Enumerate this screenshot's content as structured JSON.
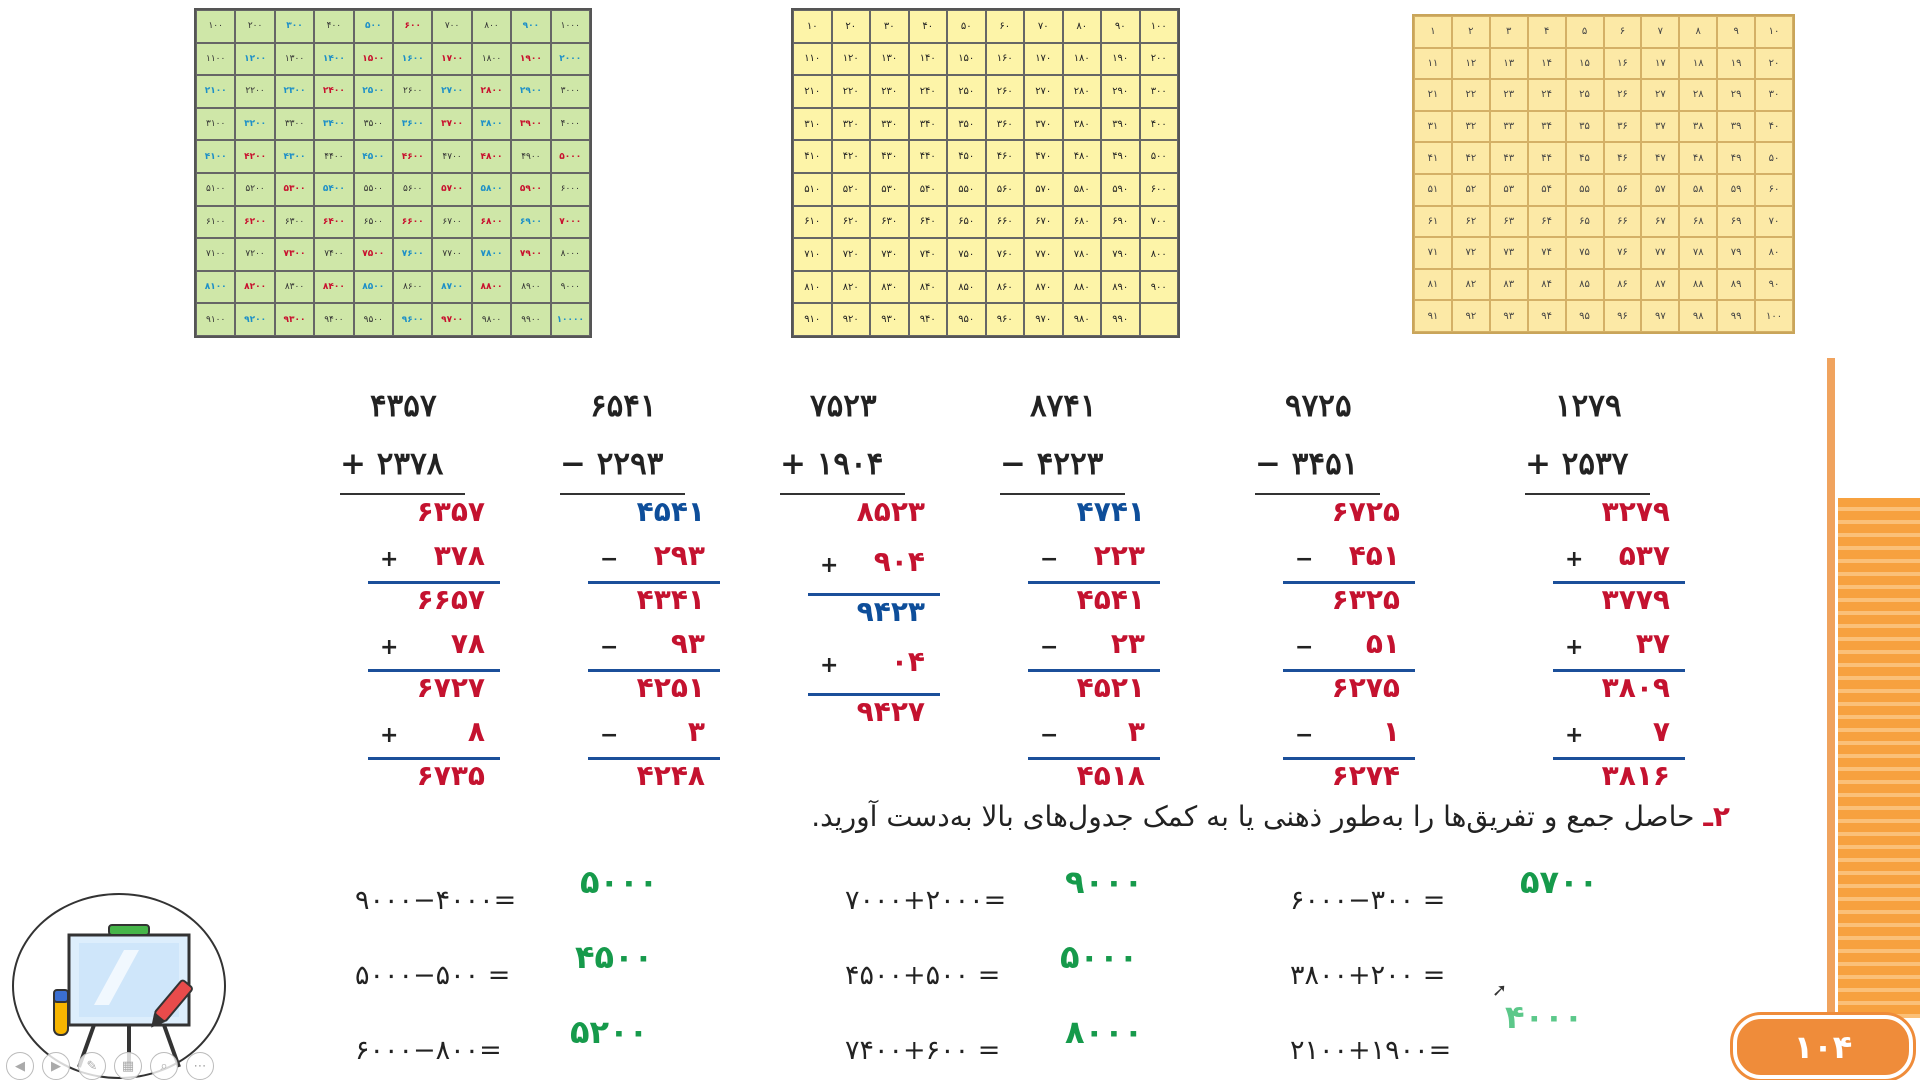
{
  "grids": {
    "thousands": [
      "۱۰۰",
      "۲۰۰",
      "۳۰۰",
      "۴۰۰",
      "۵۰۰",
      "۶۰۰",
      "۷۰۰",
      "۸۰۰",
      "۹۰۰",
      "۱۰۰۰",
      "۱۱۰۰",
      "۱۲۰۰",
      "۱۳۰۰",
      "۱۴۰۰",
      "۱۵۰۰",
      "۱۶۰۰",
      "۱۷۰۰",
      "۱۸۰۰",
      "۱۹۰۰",
      "۲۰۰۰",
      "۲۱۰۰",
      "۲۲۰۰",
      "۲۳۰۰",
      "۲۴۰۰",
      "۲۵۰۰",
      "۲۶۰۰",
      "۲۷۰۰",
      "۲۸۰۰",
      "۲۹۰۰",
      "۳۰۰۰",
      "۳۱۰۰",
      "۳۲۰۰",
      "۳۳۰۰",
      "۳۴۰۰",
      "۳۵۰۰",
      "۳۶۰۰",
      "۳۷۰۰",
      "۳۸۰۰",
      "۳۹۰۰",
      "۴۰۰۰",
      "۴۱۰۰",
      "۴۲۰۰",
      "۴۳۰۰",
      "۴۴۰۰",
      "۴۵۰۰",
      "۴۶۰۰",
      "۴۷۰۰",
      "۴۸۰۰",
      "۴۹۰۰",
      "۵۰۰۰",
      "۵۱۰۰",
      "۵۲۰۰",
      "۵۳۰۰",
      "۵۴۰۰",
      "۵۵۰۰",
      "۵۶۰۰",
      "۵۷۰۰",
      "۵۸۰۰",
      "۵۹۰۰",
      "۶۰۰۰",
      "۶۱۰۰",
      "۶۲۰۰",
      "۶۳۰۰",
      "۶۴۰۰",
      "۶۵۰۰",
      "۶۶۰۰",
      "۶۷۰۰",
      "۶۸۰۰",
      "۶۹۰۰",
      "۷۰۰۰",
      "۷۱۰۰",
      "۷۲۰۰",
      "۷۳۰۰",
      "۷۴۰۰",
      "۷۵۰۰",
      "۷۶۰۰",
      "۷۷۰۰",
      "۷۸۰۰",
      "۷۹۰۰",
      "۸۰۰۰",
      "۸۱۰۰",
      "۸۲۰۰",
      "۸۳۰۰",
      "۸۴۰۰",
      "۸۵۰۰",
      "۸۶۰۰",
      "۸۷۰۰",
      "۸۸۰۰",
      "۸۹۰۰",
      "۹۰۰۰",
      "۹۱۰۰",
      "۹۲۰۰",
      "۹۳۰۰",
      "۹۴۰۰",
      "۹۵۰۰",
      "۹۶۰۰",
      "۹۷۰۰",
      "۹۸۰۰",
      "۹۹۰۰",
      "۱۰۰۰۰"
    ],
    "thousands_colors": [
      "plain",
      "plain",
      "blue",
      "plain",
      "blue",
      "red",
      "plain",
      "plain",
      "blue",
      "plain",
      "plain",
      "blue",
      "plain",
      "blue",
      "red",
      "blue",
      "red",
      "plain",
      "red",
      "blue",
      "blue",
      "plain",
      "blue",
      "red",
      "blue",
      "plain",
      "blue",
      "red",
      "blue",
      "plain",
      "plain",
      "blue",
      "plain",
      "blue",
      "plain",
      "blue",
      "red",
      "blue",
      "red",
      "plain",
      "blue",
      "red",
      "blue",
      "plain",
      "blue",
      "red",
      "plain",
      "red",
      "plain",
      "red",
      "plain",
      "plain",
      "red",
      "blue",
      "plain",
      "plain",
      "red",
      "blue",
      "red",
      "plain",
      "plain",
      "red",
      "plain",
      "red",
      "plain",
      "red",
      "plain",
      "red",
      "blue",
      "red",
      "plain",
      "plain",
      "red",
      "plain",
      "red",
      "blue",
      "plain",
      "blue",
      "red",
      "plain",
      "blue",
      "red",
      "plain",
      "red",
      "blue",
      "plain",
      "blue",
      "red",
      "plain",
      "plain",
      "plain",
      "blue",
      "red",
      "plain",
      "plain",
      "blue",
      "red",
      "plain",
      "plain",
      "blue"
    ],
    "hundreds": [
      "۱۰",
      "۲۰",
      "۳۰",
      "۴۰",
      "۵۰",
      "۶۰",
      "۷۰",
      "۸۰",
      "۹۰",
      "۱۰۰",
      "۱۱۰",
      "۱۲۰",
      "۱۳۰",
      "۱۴۰",
      "۱۵۰",
      "۱۶۰",
      "۱۷۰",
      "۱۸۰",
      "۱۹۰",
      "۲۰۰",
      "۲۱۰",
      "۲۲۰",
      "۲۳۰",
      "۲۴۰",
      "۲۵۰",
      "۲۶۰",
      "۲۷۰",
      "۲۸۰",
      "۲۹۰",
      "۳۰۰",
      "۳۱۰",
      "۳۲۰",
      "۳۳۰",
      "۳۴۰",
      "۳۵۰",
      "۳۶۰",
      "۳۷۰",
      "۳۸۰",
      "۳۹۰",
      "۴۰۰",
      "۴۱۰",
      "۴۲۰",
      "۴۳۰",
      "۴۴۰",
      "۴۵۰",
      "۴۶۰",
      "۴۷۰",
      "۴۸۰",
      "۴۹۰",
      "۵۰۰",
      "۵۱۰",
      "۵۲۰",
      "۵۳۰",
      "۵۴۰",
      "۵۵۰",
      "۵۶۰",
      "۵۷۰",
      "۵۸۰",
      "۵۹۰",
      "۶۰۰",
      "۶۱۰",
      "۶۲۰",
      "۶۳۰",
      "۶۴۰",
      "۶۵۰",
      "۶۶۰",
      "۶۷۰",
      "۶۸۰",
      "۶۹۰",
      "۷۰۰",
      "۷۱۰",
      "۷۲۰",
      "۷۳۰",
      "۷۴۰",
      "۷۵۰",
      "۷۶۰",
      "۷۷۰",
      "۷۸۰",
      "۷۹۰",
      "۸۰۰",
      "۸۱۰",
      "۸۲۰",
      "۸۳۰",
      "۸۴۰",
      "۸۵۰",
      "۸۶۰",
      "۸۷۰",
      "۸۸۰",
      "۸۹۰",
      "۹۰۰",
      "۹۱۰",
      "۹۲۰",
      "۹۳۰",
      "۹۴۰",
      "۹۵۰",
      "۹۶۰",
      "۹۷۰",
      "۹۸۰",
      "۹۹۰",
      ""
    ],
    "ones": [
      "۱",
      "۲",
      "۳",
      "۴",
      "۵",
      "۶",
      "۷",
      "۸",
      "۹",
      "۱۰",
      "۱۱",
      "۱۲",
      "۱۳",
      "۱۴",
      "۱۵",
      "۱۶",
      "۱۷",
      "۱۸",
      "۱۹",
      "۲۰",
      "۲۱",
      "۲۲",
      "۲۳",
      "۲۴",
      "۲۵",
      "۲۶",
      "۲۷",
      "۲۸",
      "۲۹",
      "۳۰",
      "۳۱",
      "۳۲",
      "۳۳",
      "۳۴",
      "۳۵",
      "۳۶",
      "۳۷",
      "۳۸",
      "۳۹",
      "۴۰",
      "۴۱",
      "۴۲",
      "۴۳",
      "۴۴",
      "۴۵",
      "۴۶",
      "۴۷",
      "۴۸",
      "۴۹",
      "۵۰",
      "۵۱",
      "۵۲",
      "۵۳",
      "۵۴",
      "۵۵",
      "۵۶",
      "۵۷",
      "۵۸",
      "۵۹",
      "۶۰",
      "۶۱",
      "۶۲",
      "۶۳",
      "۶۴",
      "۶۵",
      "۶۶",
      "۶۷",
      "۶۸",
      "۶۹",
      "۷۰",
      "۷۱",
      "۷۲",
      "۷۳",
      "۷۴",
      "۷۵",
      "۷۶",
      "۷۷",
      "۷۸",
      "۷۹",
      "۸۰",
      "۸۱",
      "۸۲",
      "۸۳",
      "۸۴",
      "۸۵",
      "۸۶",
      "۸۷",
      "۸۸",
      "۸۹",
      "۹۰",
      "۹۱",
      "۹۲",
      "۹۳",
      "۹۴",
      "۹۵",
      "۹۶",
      "۹۷",
      "۹۸",
      "۹۹",
      "۱۰۰"
    ]
  },
  "problems": [
    {
      "top": "۴۳۵۷",
      "second": "+ ۲۳۷۸",
      "steps": [
        {
          "t": "۶۳۵۷",
          "c": "red"
        },
        {
          "op": "+",
          "t": "۳۷۸",
          "c": "red"
        },
        {
          "t": "۶۶۵۷",
          "c": "red"
        },
        {
          "op": "+",
          "t": "۷۸",
          "c": "red"
        },
        {
          "t": "۶۷۲۷",
          "c": "red"
        },
        {
          "op": "+",
          "t": "۸",
          "c": "red"
        },
        {
          "t": "۶۷۳۵",
          "c": "red"
        }
      ]
    },
    {
      "top": "۶۵۴۱",
      "second": "− ۲۲۹۳",
      "steps": [
        {
          "t": "۴۵۴۱",
          "c": "blue"
        },
        {
          "op": "−",
          "t": "۲۹۳",
          "c": "red"
        },
        {
          "t": "۴۳۴۱",
          "c": "red"
        },
        {
          "op": "−",
          "t": "۹۳",
          "c": "red"
        },
        {
          "t": "۴۲۵۱",
          "c": "red"
        },
        {
          "op": "−",
          "t": "۳",
          "c": "red"
        },
        {
          "t": "۴۲۴۸",
          "c": "red"
        }
      ]
    },
    {
      "top": "۷۵۲۳",
      "second": "+ ۱۹۰۴",
      "steps": [
        {
          "t": "۸۵۲۳",
          "c": "red"
        },
        {
          "op": "+",
          "t": "۹۰۴",
          "c": "red"
        },
        {
          "t": "۹۴۲۳",
          "c": "blue"
        },
        {
          "op": "+",
          "t": "۰۴",
          "c": "red"
        },
        {
          "t": "۹۴۲۷",
          "c": "red"
        }
      ]
    },
    {
      "top": "۸۷۴۱",
      "second": "− ۴۲۲۳",
      "steps": [
        {
          "t": "۴۷۴۱",
          "c": "blue"
        },
        {
          "op": "−",
          "t": "۲۲۳",
          "c": "red"
        },
        {
          "t": "۴۵۴۱",
          "c": "red"
        },
        {
          "op": "−",
          "t": "۲۳",
          "c": "red"
        },
        {
          "t": "۴۵۲۱",
          "c": "red"
        },
        {
          "op": "−",
          "t": "۳",
          "c": "red"
        },
        {
          "t": "۴۵۱۸",
          "c": "red"
        }
      ]
    },
    {
      "top": "۹۷۲۵",
      "second": "− ۳۴۵۱",
      "steps": [
        {
          "t": "۶۷۲۵",
          "c": "red"
        },
        {
          "op": "−",
          "t": "۴۵۱",
          "c": "red"
        },
        {
          "t": "۶۳۲۵",
          "c": "red"
        },
        {
          "op": "−",
          "t": "۵۱",
          "c": "red"
        },
        {
          "t": "۶۲۷۵",
          "c": "red"
        },
        {
          "op": "−",
          "t": "۱",
          "c": "red"
        },
        {
          "t": "۶۲۷۴",
          "c": "red"
        }
      ]
    },
    {
      "top": "۱۲۷۹",
      "second": "+ ۲۵۳۷",
      "steps": [
        {
          "t": "۳۲۷۹",
          "c": "red"
        },
        {
          "op": "+",
          "t": "۵۳۷",
          "c": "red"
        },
        {
          "t": "۳۷۷۹",
          "c": "red"
        },
        {
          "op": "+",
          "t": "۳۷",
          "c": "red"
        },
        {
          "t": "۳۸۰۹",
          "c": "red"
        },
        {
          "op": "+",
          "t": "۷",
          "c": "red"
        },
        {
          "t": "۳۸۱۶",
          "c": "red"
        }
      ]
    }
  ],
  "instruction": {
    "number": "۲ـ",
    "text": "حاصل جمع و تفریق‌ها را به‌طور ذهنی یا به کمک جدول‌های بالا به‌دست آورید."
  },
  "equations": [
    {
      "expr": "۹۰۰۰−۴۰۰۰=",
      "answer": "۵۰۰۰"
    },
    {
      "expr": "۵۰۰۰−۵۰۰ =",
      "answer": "۴۵۰۰"
    },
    {
      "expr": "۶۰۰۰−۸۰۰=",
      "answer": "۵۲۰۰"
    },
    {
      "expr": "۷۰۰۰+۲۰۰۰=",
      "answer": "۹۰۰۰"
    },
    {
      "expr": "۴۵۰۰+۵۰۰ =",
      "answer": "۵۰۰۰"
    },
    {
      "expr": "۷۴۰۰+۶۰۰ =",
      "answer": "۸۰۰۰"
    },
    {
      "expr": "۶۰۰۰−۳۰۰ =",
      "answer": "۵۷۰۰"
    },
    {
      "expr": "۳۸۰۰+۲۰۰ =",
      "answer": "۴۰۰۰"
    },
    {
      "expr": "۲۱۰۰+۱۹۰۰=",
      "answer": ""
    }
  ],
  "page_number": "۱۰۴",
  "colors": {
    "red": "#c4122f",
    "blue": "#0e4e9a",
    "green": "#169a4b",
    "orange": "#ef8c3a"
  }
}
